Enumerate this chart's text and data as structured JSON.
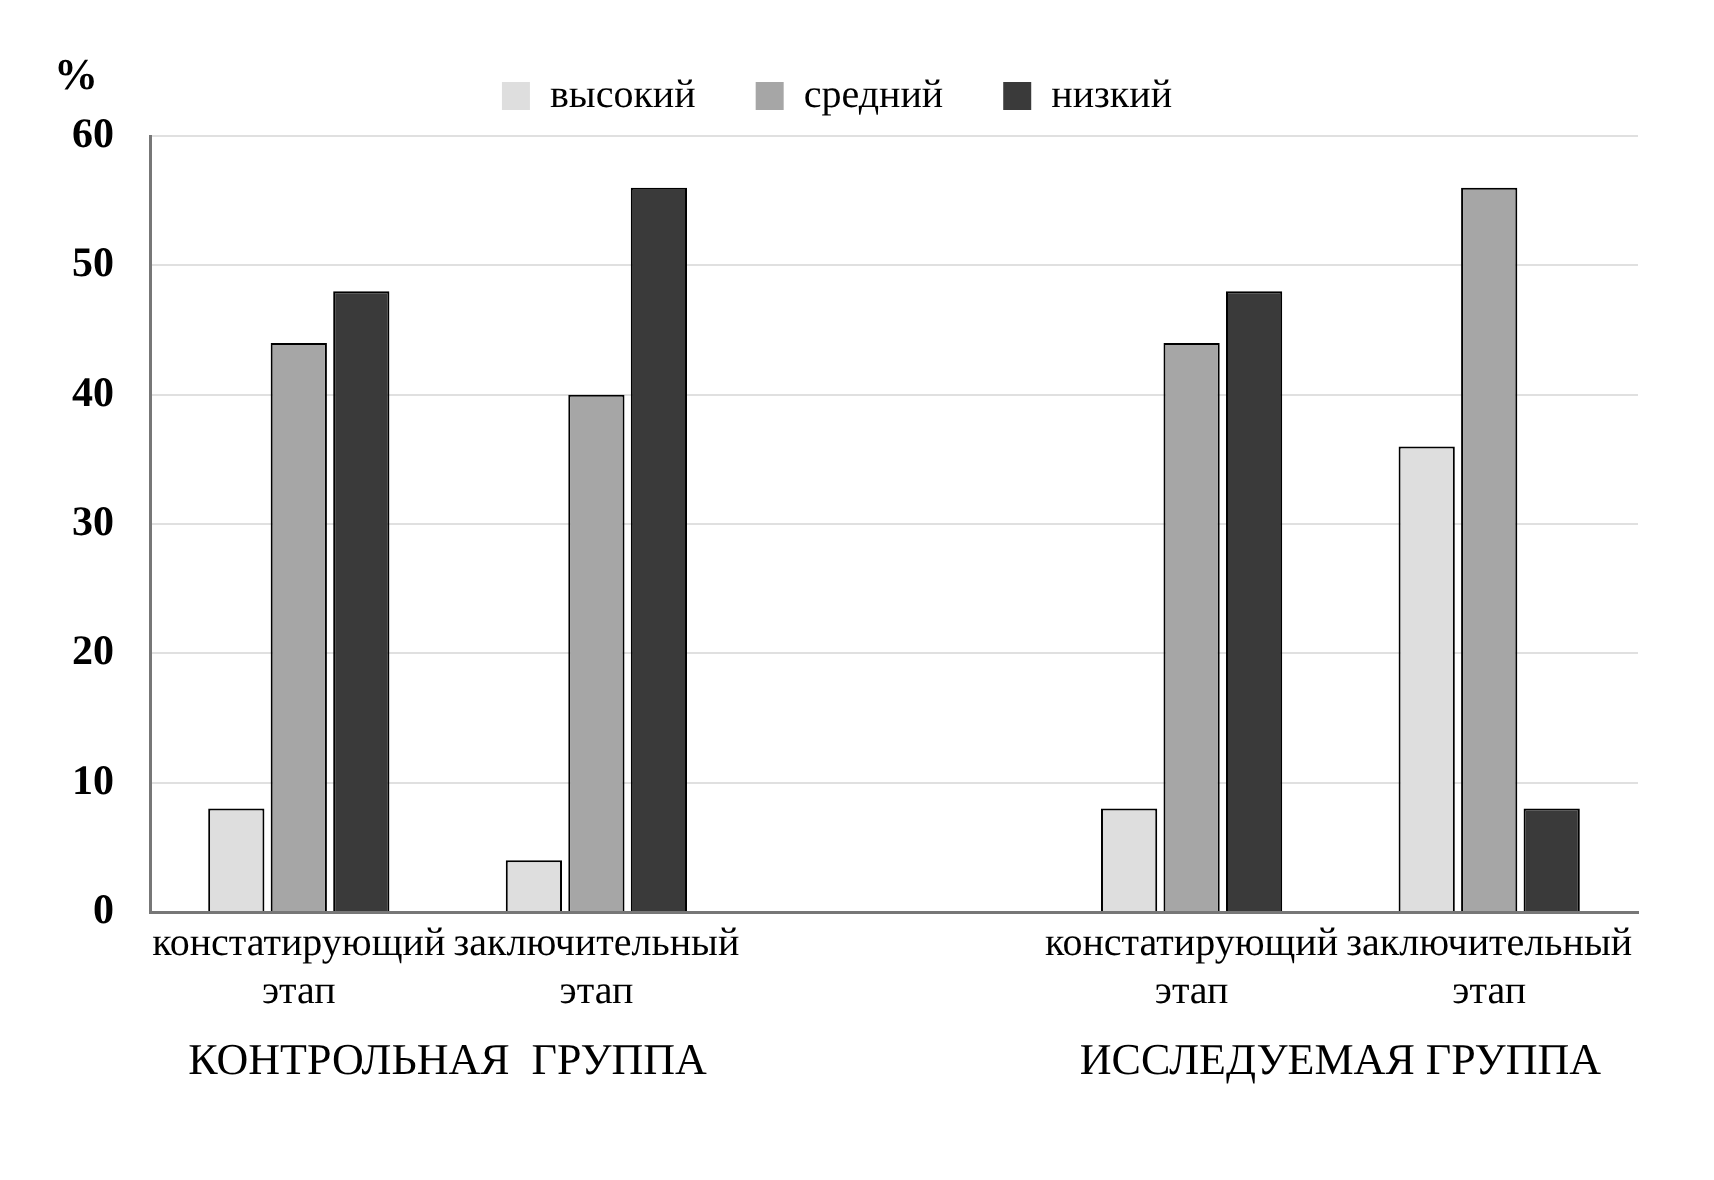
{
  "chart_data": {
    "type": "bar",
    "ylabel": "%",
    "categories": [
      "констатирующий этап",
      "заключительный этап",
      null,
      "констатирующий этап",
      "заключительный этап"
    ],
    "series": [
      {
        "name": "высокий",
        "color": "#dedede",
        "values": [
          8,
          4,
          null,
          8,
          36
        ]
      },
      {
        "name": "средний",
        "color": "#a6a6a6",
        "values": [
          44,
          40,
          null,
          44,
          56
        ]
      },
      {
        "name": "низкий",
        "color": "#3a3a3a",
        "values": [
          48,
          56,
          null,
          48,
          8
        ]
      }
    ],
    "ylim": [
      0,
      60
    ],
    "yticks": [
      0,
      10,
      20,
      30,
      40,
      50,
      60
    ],
    "grid": "y",
    "legend": "top",
    "annotations": [
      "КОНТРОЛЬНАЯ  ГРУППА",
      "ИССЛЕДУЕМАЯ ГРУППА"
    ]
  }
}
